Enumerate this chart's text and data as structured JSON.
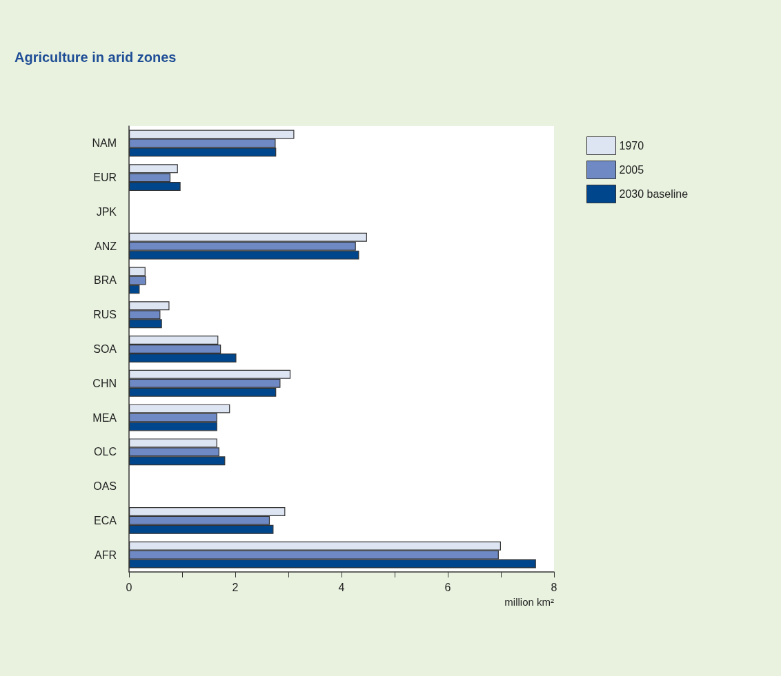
{
  "chart_data": {
    "type": "bar",
    "orientation": "horizontal",
    "title": "Agriculture in arid zones",
    "xlabel": "million km²",
    "categories": [
      "NAM",
      "EUR",
      "JPK",
      "ANZ",
      "BRA",
      "RUS",
      "SOA",
      "CHN",
      "MEA",
      "OLC",
      "OAS",
      "ECA",
      "AFR"
    ],
    "series": [
      {
        "name": "1970",
        "color": "#dde4f2",
        "values": [
          3.11,
          0.92,
          0,
          4.48,
          0.31,
          0.76,
          1.68,
          3.04,
          1.9,
          1.66,
          0,
          2.94,
          7.0
        ]
      },
      {
        "name": "2005",
        "color": "#6e89c4",
        "values": [
          2.76,
          0.78,
          0,
          4.27,
          0.32,
          0.59,
          1.73,
          2.85,
          1.66,
          1.7,
          0,
          2.65,
          6.96
        ]
      },
      {
        "name": "2030 baseline",
        "color": "#00468c",
        "values": [
          2.77,
          0.97,
          0,
          4.33,
          0.2,
          0.62,
          2.02,
          2.77,
          1.66,
          1.81,
          0,
          2.72,
          7.66
        ]
      }
    ],
    "xlim": [
      0,
      8
    ],
    "xticks": [
      0,
      {
        "value": 1,
        "label": null
      },
      2,
      {
        "value": 3,
        "label": null
      },
      4,
      {
        "value": 5,
        "label": null
      },
      6,
      {
        "value": 7,
        "label": null
      },
      8
    ],
    "grid": false,
    "legend": "top right"
  }
}
